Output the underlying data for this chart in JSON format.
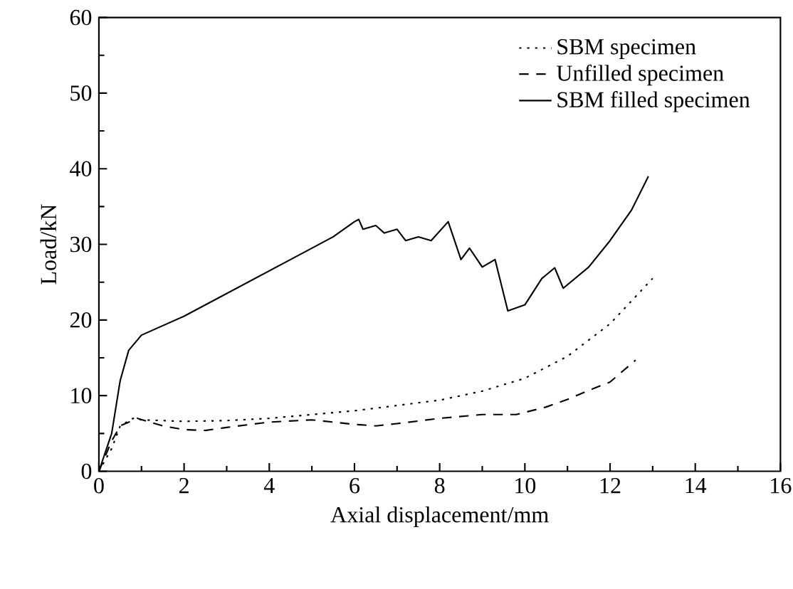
{
  "chart_data": {
    "type": "line",
    "xlabel": "Axial displacement/mm",
    "ylabel": "Load/kN",
    "xlim": [
      0,
      16
    ],
    "ylim": [
      0,
      60
    ],
    "xticks": [
      0,
      2,
      4,
      6,
      8,
      10,
      12,
      14,
      16
    ],
    "yticks": [
      0,
      10,
      20,
      30,
      40,
      50,
      60
    ],
    "grid": false,
    "legend": "top right",
    "marker": "none",
    "series": [
      {
        "name": "SBM specimen",
        "color": "#000000",
        "line_style": "dotted",
        "x": [
          0,
          0.3,
          0.5,
          0.8,
          1,
          2,
          3,
          4,
          5,
          6,
          7,
          8,
          9,
          10,
          11,
          12,
          13
        ],
        "values": [
          0,
          3,
          6,
          7,
          6.8,
          6.6,
          6.7,
          7,
          7.5,
          8,
          8.7,
          9.4,
          10.6,
          12.3,
          15.2,
          19.5,
          25.5
        ]
      },
      {
        "name": "Unfilled specimen",
        "color": "#000000",
        "line_style": "dashed",
        "x": [
          0,
          0.3,
          0.5,
          0.9,
          1.5,
          2,
          2.5,
          3,
          4,
          5,
          6,
          6.5,
          7,
          8,
          9,
          9.8,
          10.5,
          11,
          11.5,
          12,
          12.6
        ],
        "values": [
          0,
          4,
          6,
          7,
          6,
          5.5,
          5.4,
          5.8,
          6.5,
          6.8,
          6.2,
          6,
          6.3,
          7,
          7.5,
          7.5,
          8.5,
          9.5,
          10.7,
          11.8,
          14.7
        ]
      },
      {
        "name": "SBM filled specimen",
        "color": "#000000",
        "line_style": "solid",
        "x": [
          0,
          0.3,
          0.5,
          0.7,
          1,
          2,
          3,
          4,
          5,
          5.5,
          6,
          6.1,
          6.2,
          6.5,
          6.7,
          7,
          7.2,
          7.5,
          7.8,
          8.2,
          8.5,
          8.7,
          9,
          9.3,
          9.6,
          10,
          10.4,
          10.7,
          10.9,
          11.5,
          12,
          12.5,
          12.9
        ],
        "values": [
          0,
          5,
          12,
          16,
          18,
          20.5,
          23.5,
          26.5,
          29.5,
          31,
          33,
          33.3,
          32,
          32.5,
          31.5,
          32,
          30.5,
          31,
          30.5,
          33,
          28,
          29.5,
          27,
          28,
          21.2,
          22,
          25.5,
          26.9,
          24.2,
          27,
          30.5,
          34.5,
          39
        ]
      }
    ]
  }
}
